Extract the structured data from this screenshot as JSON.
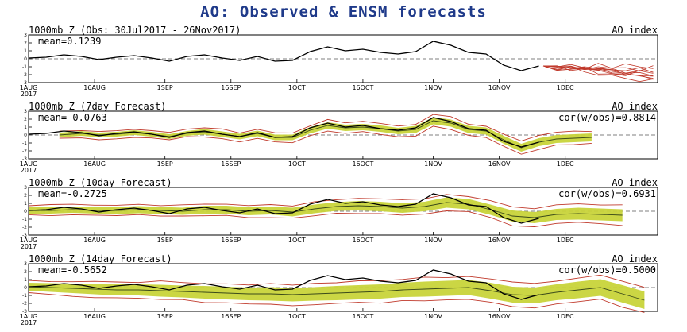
{
  "title": "AO: Observed & ENSM forecasts",
  "colors": {
    "observed": "#000000",
    "members": "#c0392b",
    "spread": "#c8d43a",
    "ensmean": "#3b4a1a",
    "title": "#1f3a8a"
  },
  "chart_data": [
    {
      "type": "line",
      "title": "1000mb Z (Obs: 30Jul2017 - 26Nov2017)",
      "right_label": "AO index",
      "mean_label": "mean=0.1239",
      "cor_label": "",
      "ylim": [
        -3,
        3
      ],
      "yticks": [
        -3,
        -2,
        -1,
        0,
        1,
        2,
        3
      ],
      "xlim": [
        0,
        143
      ],
      "x_ticks": [
        {
          "x": 0,
          "label": "1AUG",
          "label2": "2017"
        },
        {
          "x": 15,
          "label": "16AUG"
        },
        {
          "x": 31,
          "label": "1SEP"
        },
        {
          "x": 46,
          "label": "16SEP"
        },
        {
          "x": 61,
          "label": "1OCT"
        },
        {
          "x": 76,
          "label": "16OCT"
        },
        {
          "x": 92,
          "label": "1NOV"
        },
        {
          "x": 107,
          "label": "16NOV"
        },
        {
          "x": 122,
          "label": "1DEC"
        }
      ],
      "observed": {
        "x": [
          0,
          4,
          8,
          12,
          16,
          20,
          24,
          28,
          32,
          36,
          40,
          44,
          48,
          52,
          56,
          60,
          64,
          68,
          72,
          76,
          80,
          84,
          88,
          92,
          96,
          100,
          104,
          108,
          112,
          116
        ],
        "y": [
          0.1,
          0.2,
          0.5,
          0.3,
          -0.1,
          0.2,
          0.4,
          0.1,
          -0.3,
          0.3,
          0.5,
          0.1,
          -0.2,
          0.3,
          -0.3,
          -0.2,
          0.9,
          1.5,
          1.0,
          1.2,
          0.8,
          0.6,
          0.9,
          2.2,
          1.7,
          0.8,
          0.6,
          -0.8,
          -1.5,
          -0.9
        ]
      },
      "members_start": 117,
      "members_end": 142,
      "members_end_values": [
        -1.2,
        -1.6,
        -2.0,
        -2.4,
        -2.8,
        -1.0,
        -1.8,
        -2.2,
        -1.4,
        -2.6
      ]
    },
    {
      "type": "line",
      "title": "1000mb Z (7day Forecast)",
      "right_label": "AO index",
      "mean_label": "mean=-0.0763",
      "cor_label": "cor(w/obs)=0.8814",
      "ylim": [
        -3,
        3
      ],
      "yticks": [
        -3,
        -2,
        -1,
        0,
        1,
        2,
        3
      ],
      "xlim": [
        0,
        143
      ],
      "x_ticks": [
        {
          "x": 0,
          "label": "1AUG",
          "label2": "2017"
        },
        {
          "x": 15,
          "label": "16AUG"
        },
        {
          "x": 31,
          "label": "1SEP"
        },
        {
          "x": 46,
          "label": "16SEP"
        },
        {
          "x": 61,
          "label": "1OCT"
        },
        {
          "x": 76,
          "label": "16OCT"
        },
        {
          "x": 92,
          "label": "1NOV"
        },
        {
          "x": 107,
          "label": "16NOV"
        },
        {
          "x": 122,
          "label": "1DEC"
        }
      ],
      "observed": {
        "x": [
          0,
          4,
          8,
          12,
          16,
          20,
          24,
          28,
          32,
          36,
          40,
          44,
          48,
          52,
          56,
          60,
          64,
          68,
          72,
          76,
          80,
          84,
          88,
          92,
          96,
          100,
          104,
          108,
          112,
          116
        ],
        "y": [
          0.1,
          0.2,
          0.5,
          0.3,
          -0.1,
          0.2,
          0.4,
          0.1,
          -0.3,
          0.3,
          0.5,
          0.1,
          -0.2,
          0.3,
          -0.3,
          -0.2,
          0.9,
          1.5,
          1.0,
          1.2,
          0.8,
          0.6,
          0.9,
          2.2,
          1.7,
          0.8,
          0.6,
          -0.8,
          -1.5,
          -0.9
        ]
      },
      "forecast": {
        "x": [
          7,
          12,
          16,
          20,
          24,
          28,
          32,
          36,
          40,
          44,
          48,
          52,
          56,
          60,
          64,
          68,
          72,
          76,
          80,
          84,
          88,
          92,
          96,
          100,
          104,
          108,
          112,
          116,
          120,
          124,
          128
        ],
        "mean": [
          0.0,
          0.2,
          0.0,
          0.1,
          0.3,
          0.1,
          -0.2,
          0.2,
          0.4,
          0.1,
          -0.2,
          0.2,
          -0.3,
          -0.3,
          0.6,
          1.2,
          0.9,
          1.0,
          0.8,
          0.5,
          0.7,
          1.8,
          1.5,
          0.7,
          0.5,
          -0.6,
          -1.6,
          -0.9,
          -0.5,
          -0.4,
          -0.3
        ],
        "spread": [
          0.3,
          0.3,
          0.3,
          0.3,
          0.3,
          0.3,
          0.3,
          0.3,
          0.35,
          0.35,
          0.35,
          0.35,
          0.35,
          0.35,
          0.4,
          0.4,
          0.4,
          0.4,
          0.4,
          0.4,
          0.45,
          0.45,
          0.45,
          0.45,
          0.45,
          0.5,
          0.5,
          0.5,
          0.5,
          0.5,
          0.5
        ],
        "env_mult": 1.6
      }
    },
    {
      "type": "line",
      "title": "1000mb Z (10day Forecast)",
      "right_label": "AO index",
      "mean_label": "mean=-0.2725",
      "cor_label": "cor(w/obs)=0.6931",
      "ylim": [
        -3,
        3
      ],
      "yticks": [
        -3,
        -2,
        -1,
        0,
        1,
        2,
        3
      ],
      "xlim": [
        0,
        143
      ],
      "x_ticks": [
        {
          "x": 0,
          "label": "1AUG",
          "label2": "2017"
        },
        {
          "x": 15,
          "label": "16AUG"
        },
        {
          "x": 31,
          "label": "1SEP"
        },
        {
          "x": 46,
          "label": "16SEP"
        },
        {
          "x": 61,
          "label": "1OCT"
        },
        {
          "x": 76,
          "label": "16OCT"
        },
        {
          "x": 92,
          "label": "1NOV"
        },
        {
          "x": 107,
          "label": "16NOV"
        },
        {
          "x": 122,
          "label": "1DEC"
        }
      ],
      "observed": {
        "x": [
          0,
          4,
          8,
          12,
          16,
          20,
          24,
          28,
          32,
          36,
          40,
          44,
          48,
          52,
          56,
          60,
          64,
          68,
          72,
          76,
          80,
          84,
          88,
          92,
          96,
          100,
          104,
          108,
          112,
          116
        ],
        "y": [
          0.1,
          0.2,
          0.5,
          0.3,
          -0.1,
          0.2,
          0.4,
          0.1,
          -0.3,
          0.3,
          0.5,
          0.1,
          -0.2,
          0.3,
          -0.3,
          -0.2,
          0.9,
          1.5,
          1.0,
          1.2,
          0.8,
          0.6,
          0.9,
          2.2,
          1.7,
          0.8,
          0.6,
          -0.8,
          -1.5,
          -0.9
        ]
      },
      "forecast": {
        "x": [
          0,
          5,
          10,
          15,
          20,
          25,
          30,
          35,
          40,
          45,
          50,
          55,
          60,
          65,
          70,
          75,
          80,
          85,
          90,
          95,
          100,
          105,
          110,
          115,
          120,
          125,
          130,
          135
        ],
        "mean": [
          0.1,
          0.1,
          0.2,
          0.1,
          0.1,
          0.2,
          0.1,
          0.0,
          0.2,
          0.2,
          0.0,
          0.1,
          -0.1,
          0.3,
          0.6,
          0.7,
          0.6,
          0.4,
          0.6,
          1.1,
          0.9,
          0.2,
          -0.6,
          -0.8,
          -0.4,
          -0.3,
          -0.4,
          -0.5
        ],
        "spread": [
          0.4,
          0.4,
          0.4,
          0.4,
          0.45,
          0.45,
          0.45,
          0.45,
          0.5,
          0.5,
          0.5,
          0.5,
          0.55,
          0.55,
          0.55,
          0.6,
          0.6,
          0.6,
          0.6,
          0.65,
          0.65,
          0.65,
          0.7,
          0.7,
          0.7,
          0.75,
          0.75,
          0.75
        ],
        "env_mult": 1.6
      }
    },
    {
      "type": "line",
      "title": "1000mb Z (14day Forecast)",
      "right_label": "AO index",
      "mean_label": "mean=-0.5652",
      "cor_label": "cor(w/obs)=0.5000",
      "ylim": [
        -3,
        3
      ],
      "yticks": [
        -3,
        -2,
        -1,
        0,
        1,
        2,
        3
      ],
      "xlim": [
        0,
        143
      ],
      "x_ticks": [
        {
          "x": 0,
          "label": "1AUG",
          "label2": "2017"
        },
        {
          "x": 15,
          "label": "16AUG"
        },
        {
          "x": 31,
          "label": "1SEP"
        },
        {
          "x": 46,
          "label": "16SEP"
        },
        {
          "x": 61,
          "label": "1OCT"
        },
        {
          "x": 76,
          "label": "16OCT"
        },
        {
          "x": 92,
          "label": "1NOV"
        },
        {
          "x": 107,
          "label": "16NOV"
        },
        {
          "x": 122,
          "label": "1DEC"
        }
      ],
      "observed": {
        "x": [
          0,
          4,
          8,
          12,
          16,
          20,
          24,
          28,
          32,
          36,
          40,
          44,
          48,
          52,
          56,
          60,
          64,
          68,
          72,
          76,
          80,
          84,
          88,
          92,
          96,
          100,
          104,
          108,
          112,
          116
        ],
        "y": [
          0.1,
          0.2,
          0.5,
          0.3,
          -0.1,
          0.2,
          0.4,
          0.1,
          -0.3,
          0.3,
          0.5,
          0.1,
          -0.2,
          0.3,
          -0.3,
          -0.2,
          0.9,
          1.5,
          1.0,
          1.2,
          0.8,
          0.6,
          0.9,
          2.2,
          1.7,
          0.8,
          0.6,
          -0.8,
          -1.5,
          -0.9
        ]
      },
      "forecast": {
        "x": [
          0,
          5,
          10,
          15,
          20,
          25,
          30,
          35,
          40,
          45,
          50,
          55,
          60,
          65,
          70,
          75,
          80,
          85,
          90,
          95,
          100,
          105,
          110,
          115,
          120,
          125,
          130,
          135,
          140
        ],
        "mean": [
          0.1,
          0.0,
          -0.1,
          -0.2,
          -0.3,
          -0.3,
          -0.4,
          -0.5,
          -0.6,
          -0.7,
          -0.8,
          -0.8,
          -0.9,
          -0.8,
          -0.7,
          -0.6,
          -0.5,
          -0.3,
          -0.2,
          -0.1,
          0.0,
          -0.4,
          -0.9,
          -1.0,
          -0.6,
          -0.3,
          0.0,
          -0.8,
          -1.6
        ],
        "spread": [
          0.5,
          0.55,
          0.6,
          0.65,
          0.7,
          0.7,
          0.75,
          0.75,
          0.8,
          0.8,
          0.8,
          0.85,
          0.85,
          0.85,
          0.9,
          0.9,
          0.9,
          0.9,
          0.95,
          0.95,
          0.95,
          1.0,
          1.0,
          1.0,
          1.0,
          1.05,
          1.05,
          1.1,
          1.1
        ],
        "env_mult": 1.5
      }
    }
  ]
}
